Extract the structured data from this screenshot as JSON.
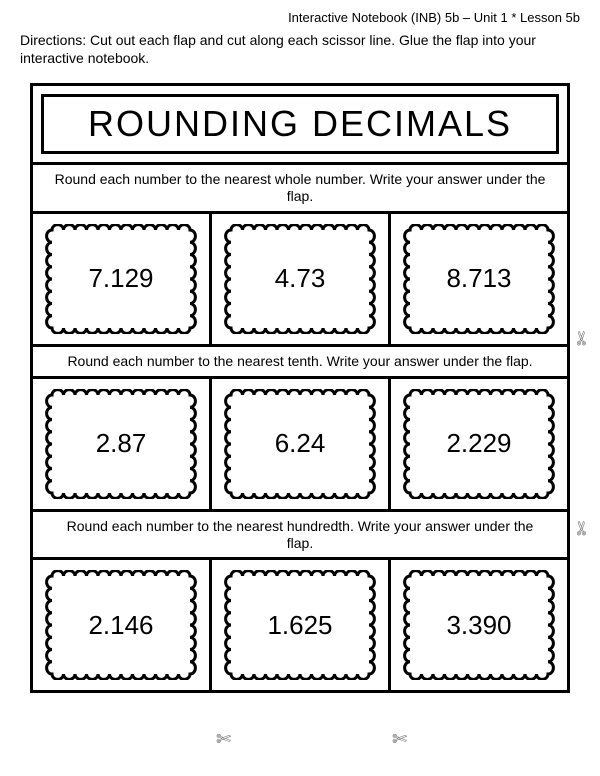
{
  "header": "Interactive Notebook (INB) 5b – Unit 1 * Lesson 5b",
  "directions": "Directions:  Cut out each flap and cut along each scissor line.  Glue the flap into your interactive notebook.",
  "title": "ROUNDING DECIMALS",
  "sections": [
    {
      "instruction": "Round each number to the nearest whole number.  Write your answer under the flap.",
      "values": [
        "7.129",
        "4.73",
        "8.713"
      ]
    },
    {
      "instruction": "Round each number to the nearest tenth.  Write your answer under the flap.",
      "values": [
        "2.87",
        "6.24",
        "2.229"
      ]
    },
    {
      "instruction": "Round each number to the nearest hundredth.  Write your answer under the flap.",
      "values": [
        "2.146",
        "1.625",
        "3.390"
      ]
    }
  ],
  "style": {
    "border_color": "#000000",
    "background": "#ffffff",
    "title_fontsize": 36,
    "instruction_fontsize": 14,
    "number_fontsize": 26,
    "scallop_stroke": "#000000",
    "scallop_stroke_width": 3
  },
  "icons": {
    "scissors": "✄"
  }
}
